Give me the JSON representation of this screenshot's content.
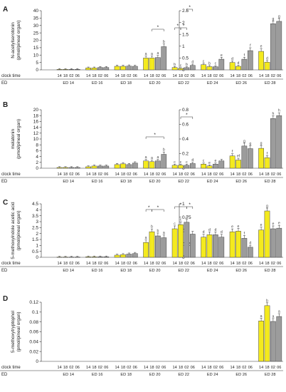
{
  "chart_data": [
    {
      "panel": "A",
      "type": "bar",
      "ylabel": "N-acetylserotonin\n(pmol/pineal organ)",
      "ylim_left": [
        0,
        40
      ],
      "yticks_left": [
        "0",
        "5",
        "10",
        "15",
        "20",
        "25",
        "30",
        "35",
        "40"
      ],
      "ylim_right": [
        0,
        2.5
      ],
      "yticks_right": [
        "0",
        "0.5",
        "1",
        "1.5",
        "2",
        "2.5"
      ],
      "clock_labels": [
        "14",
        "18",
        "02",
        "06"
      ],
      "groups": [
        "ED 14",
        "ED 16",
        "ED 18",
        "ED 20",
        "ED 22",
        "ED 24",
        "ED 26",
        "ED 28"
      ],
      "series": [
        {
          "name": "",
          "axis": "right",
          "values": [
            [
              0.02,
              0.02,
              0.02,
              0.02
            ],
            [
              0.08,
              0.08,
              0.1,
              0.1
            ],
            [
              0.15,
              0.15,
              0.16,
              0.15
            ],
            [
              0.5,
              0.5,
              0.52,
              0.98
            ],
            [
              1.08,
              0.75,
              1.05,
              2.42
            ],
            [
              0,
              0,
              0,
              0
            ],
            [
              0,
              0,
              0,
              0
            ],
            [
              0,
              0,
              0,
              0
            ]
          ]
        },
        {
          "name": "",
          "axis": "left",
          "values": [
            [
              0,
              0,
              0,
              0
            ],
            [
              0,
              0,
              0,
              0
            ],
            [
              0,
              0,
              0,
              0
            ],
            [
              0,
              0,
              0,
              0
            ],
            [
              1.6,
              0.9,
              1.5,
              3.0
            ],
            [
              3.5,
              2.2,
              2.1,
              7.2
            ],
            [
              5.0,
              2.4,
              7.2,
              13.0
            ],
            [
              12.5,
              5.2,
              31.2,
              32.8
            ]
          ]
        }
      ],
      "sig_letters": [
        [
          "",
          "",
          "",
          ""
        ],
        [
          "",
          "",
          "",
          ""
        ],
        [
          "",
          "",
          "",
          ""
        ],
        [
          "a",
          "a",
          "a",
          "b"
        ],
        [
          "b",
          "c",
          "b",
          "d"
        ],
        [
          "c",
          "b",
          "c",
          "e"
        ],
        [
          "d",
          "d",
          "f",
          "f"
        ],
        [
          "e",
          "d",
          "g",
          "g"
        ]
      ],
      "stars": [
        "*",
        "*",
        "*",
        "*"
      ]
    },
    {
      "panel": "B",
      "type": "bar",
      "ylabel": "melatonin\n(pmol/pineal organ)",
      "ylim_left": [
        0,
        20
      ],
      "yticks_left": [
        "0",
        "2",
        "4",
        "6",
        "8",
        "10",
        "12",
        "14",
        "16",
        "18",
        "20"
      ],
      "ylim_right": [
        0,
        0.8
      ],
      "yticks_right": [
        "0",
        "0.2",
        "0.4",
        "0.6",
        "0.8"
      ],
      "clock_labels": [
        "14",
        "18",
        "02",
        "06"
      ],
      "groups": [
        "ED 14",
        "ED 16",
        "ED 18",
        "ED 20",
        "ED 22",
        "ED 24",
        "ED 26",
        "ED 28"
      ],
      "series": [
        {
          "name": "",
          "axis": "right",
          "values": [
            [
              0.01,
              0.01,
              0.01,
              0.01
            ],
            [
              0.02,
              0.03,
              0.03,
              0.03
            ],
            [
              0.05,
              0.06,
              0.05,
              0.07
            ],
            [
              0.1,
              0.09,
              0.1,
              0.19
            ],
            [
              0.32,
              0.28,
              0.33,
              0.59
            ],
            [
              0,
              0,
              0,
              0
            ],
            [
              0,
              0,
              0,
              0
            ],
            [
              0,
              0,
              0,
              0
            ]
          ]
        },
        {
          "name": "",
          "axis": "left",
          "values": [
            [
              0,
              0,
              0,
              0
            ],
            [
              0,
              0,
              0,
              0
            ],
            [
              0,
              0,
              0,
              0
            ],
            [
              0,
              0,
              0,
              0
            ],
            [
              1.0,
              1.0,
              1.0,
              1.6
            ],
            [
              1.4,
              0.8,
              1.4,
              2.5
            ],
            [
              4.2,
              2.8,
              7.6,
              6.7
            ],
            [
              6.8,
              3.6,
              17.0,
              18.0
            ]
          ]
        }
      ],
      "sig_letters": [
        [
          "",
          "",
          "",
          ""
        ],
        [
          "",
          "",
          "",
          ""
        ],
        [
          "",
          "",
          "",
          ""
        ],
        [
          "a",
          "a",
          "a",
          "b"
        ],
        [
          "c",
          "c",
          "c",
          "d"
        ],
        [
          "c",
          "e",
          "e",
          ""
        ],
        [
          "f",
          "ef",
          "g",
          "g"
        ],
        [
          "g",
          "f",
          "h",
          "h"
        ]
      ],
      "stars": [
        "*",
        "*"
      ]
    },
    {
      "panel": "C",
      "type": "bar",
      "ylabel": "5-methoxyindole acetic acid\n(pmol/pineal organ)",
      "ylim_left": [
        0,
        4.5
      ],
      "yticks_left": [
        "0",
        "0.5",
        "1",
        "1.5",
        "2",
        "2.5",
        "3",
        "3.5",
        "4",
        "4.5"
      ],
      "ylim_right": [
        0,
        1
      ],
      "yticks_right": [
        "0",
        "0.25",
        "0.5",
        "0.75",
        "1"
      ],
      "clock_labels": [
        "14",
        "18",
        "02",
        "06"
      ],
      "groups": [
        "ED 14",
        "ED 16",
        "ED 18",
        "ED 20",
        "ED 22",
        "ED 24",
        "ED 26",
        "ED 28"
      ],
      "series": [
        {
          "name": "",
          "axis": "right",
          "values": [
            [
              0.005,
              0.005,
              0.005,
              0.005
            ],
            [
              0.01,
              0.01,
              0.01,
              0.01
            ],
            [
              0.04,
              0.05,
              0.06,
              0.07
            ],
            [
              0.08,
              0.2,
              0.12,
              0.1
            ],
            [
              0.2,
              0.3,
              0.3,
              0.22
            ],
            [
              0,
              0,
              0,
              0
            ],
            [
              0,
              0,
              0,
              0
            ],
            [
              0,
              0,
              0,
              0
            ]
          ]
        },
        {
          "name": "",
          "axis": "left",
          "values": [
            [
              0,
              0,
              0,
              0
            ],
            [
              0,
              0,
              0,
              0
            ],
            [
              0,
              0,
              0,
              0
            ],
            [
              1.25,
              2.15,
              1.8,
              1.65
            ],
            [
              2.4,
              2.75,
              2.95,
              1.95
            ],
            [
              1.7,
              1.9,
              1.9,
              1.7
            ],
            [
              2.15,
              2.2,
              1.6,
              0.85
            ],
            [
              2.3,
              3.9,
              2.4,
              2.45
            ]
          ]
        }
      ],
      "sig_letters": [
        [
          "",
          "",
          "",
          ""
        ],
        [
          "",
          "",
          "",
          ""
        ],
        [
          "",
          "",
          "",
          ""
        ],
        [
          "a",
          "b",
          "b",
          "a"
        ],
        [
          "c",
          "c",
          "c",
          ""
        ],
        [
          "d",
          "d",
          "d",
          "d"
        ],
        [
          "e",
          "e",
          "f",
          "d"
        ],
        [
          "e",
          "g",
          "e",
          "e"
        ]
      ],
      "stars": [
        "*",
        "*",
        "*",
        "*"
      ]
    },
    {
      "panel": "D",
      "type": "bar",
      "ylabel": "5-methoxytryptophol\n(pmol/pineal organ)",
      "ylim_left": [
        0,
        0.12
      ],
      "yticks_left": [
        "0",
        "0.02",
        "0.04",
        "0.06",
        "0.08",
        "0.1",
        "0.12"
      ],
      "clock_labels": [
        "14",
        "18",
        "02",
        "06"
      ],
      "groups": [
        "ED 14",
        "ED 16",
        "ED 18",
        "ED 20",
        "ED 22",
        "ED 24",
        "ED 26",
        "ED 28"
      ],
      "series": [
        {
          "name": "",
          "axis": "left",
          "values": [
            [
              0,
              0,
              0,
              0
            ],
            [
              0,
              0,
              0,
              0
            ],
            [
              0,
              0,
              0,
              0
            ],
            [
              0,
              0,
              0,
              0
            ],
            [
              0,
              0,
              0,
              0
            ],
            [
              0,
              0,
              0,
              0
            ],
            [
              0,
              0,
              0,
              0
            ],
            [
              0.082,
              0.113,
              0.081,
              0.091
            ]
          ]
        }
      ],
      "sig_letters": [
        [
          "",
          "",
          "",
          ""
        ],
        [
          "",
          "",
          "",
          ""
        ],
        [
          "",
          "",
          "",
          ""
        ],
        [
          "",
          "",
          "",
          ""
        ],
        [
          "",
          "",
          "",
          ""
        ],
        [
          "",
          "",
          "",
          ""
        ],
        [
          "",
          "",
          "",
          ""
        ],
        [
          "a",
          "b",
          "a",
          "a"
        ]
      ]
    }
  ],
  "labels": {
    "clock_time": "clock time",
    "ed": "ED"
  },
  "colors": {
    "light": "#f4ea1e",
    "dark": "#9c9c9c"
  }
}
